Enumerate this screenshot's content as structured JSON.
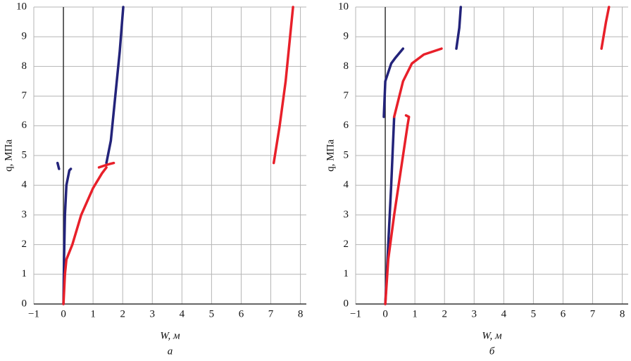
{
  "chart_data": [
    {
      "type": "line",
      "ylabel": "q, МПа",
      "xlabel": "W, м",
      "caption": "а",
      "xlim": [
        -1,
        8.2
      ],
      "ylim": [
        0,
        10
      ],
      "grid": true,
      "xticks": [
        {
          "value": -1,
          "label": "−1"
        },
        0,
        1,
        2,
        3,
        4,
        5,
        6,
        7,
        8
      ],
      "yticks": [
        0,
        1,
        2,
        3,
        4,
        5,
        6,
        7,
        8,
        9,
        10
      ],
      "series": [
        {
          "color": "#23237a",
          "x": [
            -0.2,
            -0.15,
            null,
            0,
            0.02,
            0.05,
            0.1,
            0.2,
            0.25,
            null,
            1.45,
            1.6,
            1.75,
            1.9,
            2.02
          ],
          "values": [
            4.75,
            4.55,
            null,
            0,
            1.5,
            3,
            4,
            4.5,
            4.55,
            null,
            4.75,
            5.5,
            7,
            8.5,
            10
          ]
        },
        {
          "color": "#e8202a",
          "x": [
            0,
            0.05,
            0.1,
            0.3,
            0.6,
            1,
            1.3,
            1.45,
            null,
            1.2,
            1.5,
            1.7,
            null,
            7.1,
            7.3,
            7.5,
            7.65,
            7.75
          ],
          "values": [
            0,
            1,
            1.5,
            2,
            3,
            3.9,
            4.4,
            4.6,
            null,
            4.6,
            4.7,
            4.75,
            null,
            4.75,
            6,
            7.5,
            9,
            10
          ]
        }
      ]
    },
    {
      "type": "line",
      "ylabel": "q, МПа",
      "xlabel": "W, м",
      "caption": "б",
      "xlim": [
        -1,
        8.2
      ],
      "ylim": [
        0,
        10
      ],
      "grid": true,
      "xticks": [
        {
          "value": -1,
          "label": "−1"
        },
        0,
        1,
        2,
        3,
        4,
        5,
        6,
        7,
        8
      ],
      "yticks": [
        0,
        1,
        2,
        3,
        4,
        5,
        6,
        7,
        8,
        9,
        10
      ],
      "series": [
        {
          "color": "#23237a",
          "x": [
            0,
            0.1,
            0.2,
            0.3,
            null,
            -0.05,
            0,
            0.2,
            0.35,
            0.6,
            null,
            2.4,
            2.5,
            2.55
          ],
          "values": [
            0,
            2,
            4,
            6.3,
            null,
            6.3,
            7.5,
            8.1,
            8.3,
            8.6,
            null,
            8.6,
            9.3,
            10
          ]
        },
        {
          "color": "#e8202a",
          "x": [
            0,
            0.1,
            0.3,
            0.6,
            0.75,
            0.8,
            0.7,
            null,
            0.3,
            0.6,
            0.9,
            1.3,
            1.9,
            null,
            7.3,
            7.45,
            7.55
          ],
          "values": [
            0,
            1.5,
            3,
            5,
            6,
            6.3,
            6.35,
            null,
            6.3,
            7.5,
            8.1,
            8.4,
            8.6,
            null,
            8.6,
            9.5,
            10
          ]
        }
      ]
    }
  ]
}
